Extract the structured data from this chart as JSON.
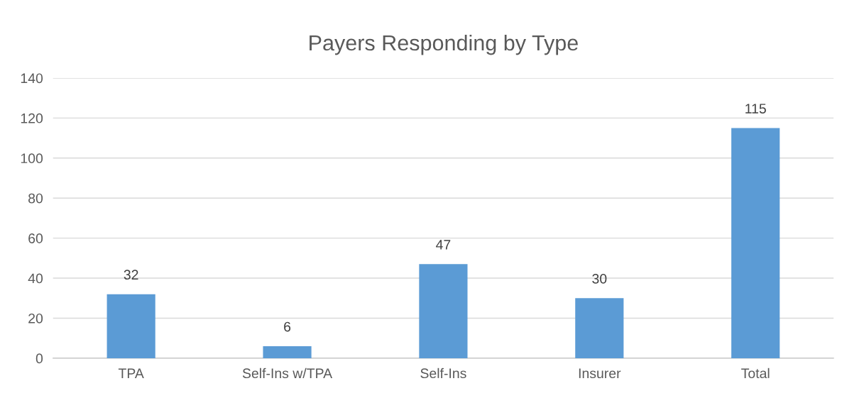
{
  "chart_data": {
    "type": "bar",
    "title": "Payers Responding by Type",
    "categories": [
      "TPA",
      "Self-Ins w/TPA",
      "Self-Ins",
      "Insurer",
      "Total"
    ],
    "values": [
      32,
      6,
      47,
      30,
      115
    ],
    "color": "#5b9bd5",
    "ylim": [
      0,
      140
    ],
    "yticks": [
      0,
      20,
      40,
      60,
      80,
      100,
      120,
      140
    ],
    "grid": "y",
    "data_labels": true
  }
}
